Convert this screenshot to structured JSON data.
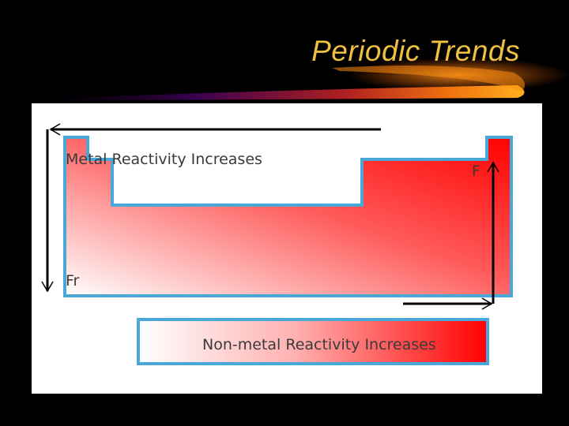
{
  "slide": {
    "title": "Periodic Trends"
  },
  "diagram": {
    "metal_trend_label": "Metal Reactivity Increases",
    "nonmetal_trend_label": "Non-metal Reactivity Increases",
    "metal_element_symbol": "Fr",
    "nonmetal_element_symbol": "F",
    "colors": {
      "gradient_start": "#ffffff",
      "gradient_end": "#ff0000",
      "outline": "#4aa8d8",
      "arrows": "#000000"
    }
  }
}
